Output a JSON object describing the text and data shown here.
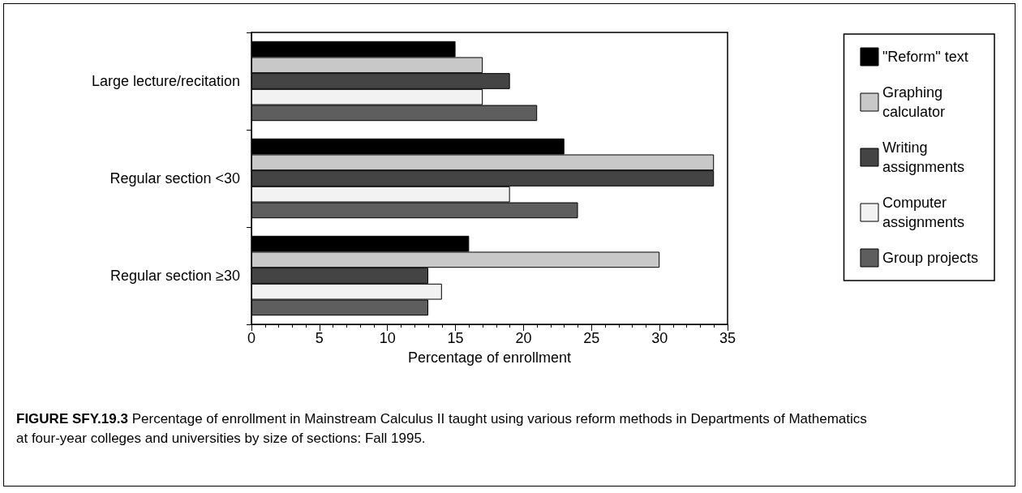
{
  "chart_data": {
    "type": "bar",
    "orientation": "horizontal",
    "xlabel": "Percentage of enrollment",
    "categories": [
      "Large lecture/recitation",
      "Regular section <30",
      "Regular section ≥30"
    ],
    "series": [
      {
        "name": "\"Reform\" text",
        "color": "#000000",
        "values": [
          15,
          23,
          16
        ]
      },
      {
        "name": "Graphing calculator",
        "color": "#c8c8c8",
        "values": [
          17,
          34,
          30
        ]
      },
      {
        "name": "Writing assignments",
        "color": "#444444",
        "values": [
          19,
          34,
          13
        ]
      },
      {
        "name": "Computer assignments",
        "color": "#f2f2f2",
        "values": [
          17,
          19,
          14
        ]
      },
      {
        "name": "Group projects",
        "color": "#5e5e5e",
        "values": [
          21,
          24,
          13
        ]
      }
    ],
    "xlim": [
      0,
      35
    ],
    "xticks": [
      0,
      5,
      10,
      15,
      20,
      25,
      30,
      35
    ],
    "grid": false,
    "legend": "right",
    "annotations": [
      "FIGURE SFY.19.3",
      "Percentage of enrollment in Mainstream Calculus II taught using various reform methods in Departments of Mathematics at four-year colleges and universities by size of sections: Fall 1995."
    ]
  }
}
